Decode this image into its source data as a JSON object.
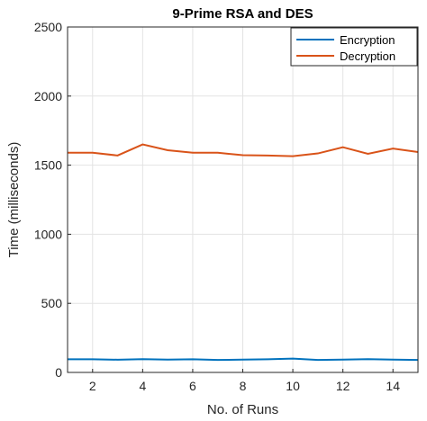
{
  "chart_data": {
    "type": "line",
    "title": "9-Prime RSA and DES",
    "xlabel": "No. of Runs",
    "ylabel": "Time (milliseconds)",
    "xlim": [
      1,
      15
    ],
    "ylim": [
      0,
      2500
    ],
    "xticks": [
      2,
      4,
      6,
      8,
      10,
      12,
      14
    ],
    "yticks": [
      0,
      500,
      1000,
      1500,
      2000,
      2500
    ],
    "grid": true,
    "legend_position": "top-right",
    "x": [
      1,
      2,
      3,
      4,
      5,
      6,
      7,
      8,
      9,
      10,
      11,
      12,
      13,
      14,
      15
    ],
    "series": [
      {
        "name": "Encryption",
        "color": "#0072BD",
        "values": [
          95,
          95,
          92,
          96,
          93,
          95,
          90,
          93,
          95,
          100,
          90,
          93,
          96,
          93,
          90
        ]
      },
      {
        "name": "Decryption",
        "color": "#D95319",
        "values": [
          1590,
          1590,
          1570,
          1650,
          1608,
          1590,
          1590,
          1572,
          1570,
          1565,
          1585,
          1630,
          1582,
          1620,
          1595
        ]
      }
    ]
  }
}
